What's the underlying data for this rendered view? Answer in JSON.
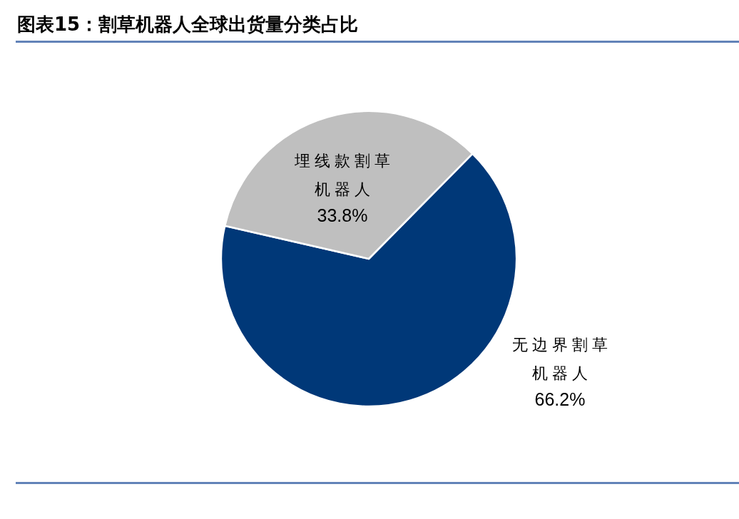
{
  "chart_data": {
    "type": "pie",
    "title": "图表15：割草机器人全球出货量分类占比",
    "categories": [
      "无边界割草机器人",
      "埋线款割草机器人"
    ],
    "values": [
      66.2,
      33.8
    ],
    "colors": [
      "#003878",
      "#bfbfbf"
    ],
    "value_labels": [
      "66.2%",
      "33.8%"
    ]
  }
}
